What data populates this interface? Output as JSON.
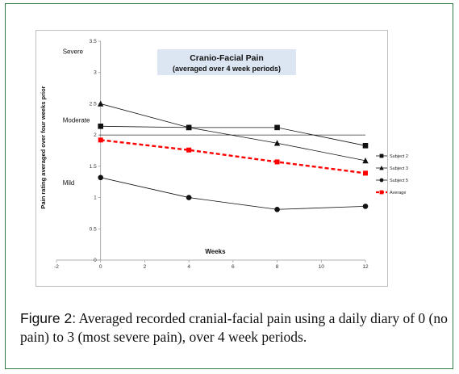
{
  "chart_data": {
    "type": "line",
    "title": "Cranio-Facial Pain",
    "subtitle": "(averaged over 4 week periods)",
    "xlabel": "Weeks",
    "ylabel": "Pain rating averaged over four weeks prior",
    "xlim": [
      -2,
      12
    ],
    "ylim": [
      0,
      3.5
    ],
    "x_ticks": [
      "-2",
      "0",
      "2",
      "4",
      "6",
      "8",
      "10",
      "12"
    ],
    "y_ticks": [
      "0",
      "0.5",
      "1",
      "1.5",
      "2",
      "2.5",
      "3",
      "3.5"
    ],
    "zones": [
      {
        "label": "Severe",
        "y": 3.3
      },
      {
        "label": "Moderate",
        "y": 2.2
      },
      {
        "label": "Mild",
        "y": 1.2
      }
    ],
    "x": [
      0,
      4,
      8,
      12
    ],
    "series": [
      {
        "name": "Subject 2",
        "marker": "square",
        "color": "#111111",
        "values": [
          2.14,
          2.12,
          2.12,
          1.83
        ]
      },
      {
        "name": "Subject 3",
        "marker": "triangle",
        "color": "#111111",
        "values": [
          2.5,
          2.12,
          1.87,
          1.59
        ]
      },
      {
        "name": "Subject 5",
        "marker": "circle",
        "color": "#111111",
        "values": [
          1.32,
          1.0,
          0.81,
          0.86
        ]
      },
      {
        "name": "Average",
        "marker": "square",
        "color": "#ff0000",
        "dashed": true,
        "values": [
          1.92,
          1.76,
          1.57,
          1.39
        ]
      }
    ],
    "reference_line": 2.0,
    "grid": false,
    "legend_position": "right"
  },
  "caption": {
    "label": "Figure 2:",
    "text": " Averaged recorded cranial-facial pain using a daily diary of 0 (no pain) to 3 (most severe pain), over 4 week periods."
  }
}
